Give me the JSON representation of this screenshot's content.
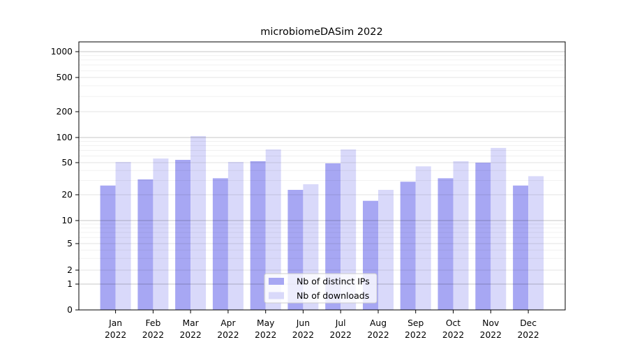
{
  "chart_data": {
    "type": "bar",
    "title": "microbiomeDASim 2022",
    "xlabel": "",
    "ylabel": "",
    "scale": "log-like (0,1,2,5,10,20,50,100,200,500,1000)",
    "grid": true,
    "legend_position": "lower center",
    "ylim": [
      0,
      1000
    ],
    "yticks": [
      0,
      1,
      2,
      5,
      10,
      20,
      50,
      100,
      200,
      500,
      1000
    ],
    "minor_gridlines": [
      3,
      4,
      6,
      7,
      8,
      9,
      30,
      40,
      60,
      70,
      80,
      90,
      300,
      400,
      600,
      700,
      800,
      900
    ],
    "categories": [
      "Jan",
      "Feb",
      "Mar",
      "Apr",
      "May",
      "Jun",
      "Jul",
      "Aug",
      "Sep",
      "Oct",
      "Nov",
      "Dec"
    ],
    "category_year": "2022",
    "series": [
      {
        "name": "Nb of distinct IPs",
        "color": "#a7a7f3",
        "values": [
          26,
          31,
          54,
          32,
          52,
          23,
          49,
          17,
          29,
          32,
          50,
          26
        ]
      },
      {
        "name": "Nb of downloads",
        "color": "#d9d9fa",
        "values": [
          51,
          56,
          104,
          51,
          72,
          27,
          72,
          23,
          45,
          52,
          75,
          34
        ]
      }
    ],
    "colors": {
      "axis": "#000000",
      "grid_major": "rgba(0,0,0,0.22)",
      "grid_labeled": "rgba(0,0,0,0.11)",
      "grid_minor": "rgba(0,0,0,0.06)",
      "legend_border": "#cccccc",
      "legend_bg": "rgba(255,255,255,0.8)"
    }
  }
}
